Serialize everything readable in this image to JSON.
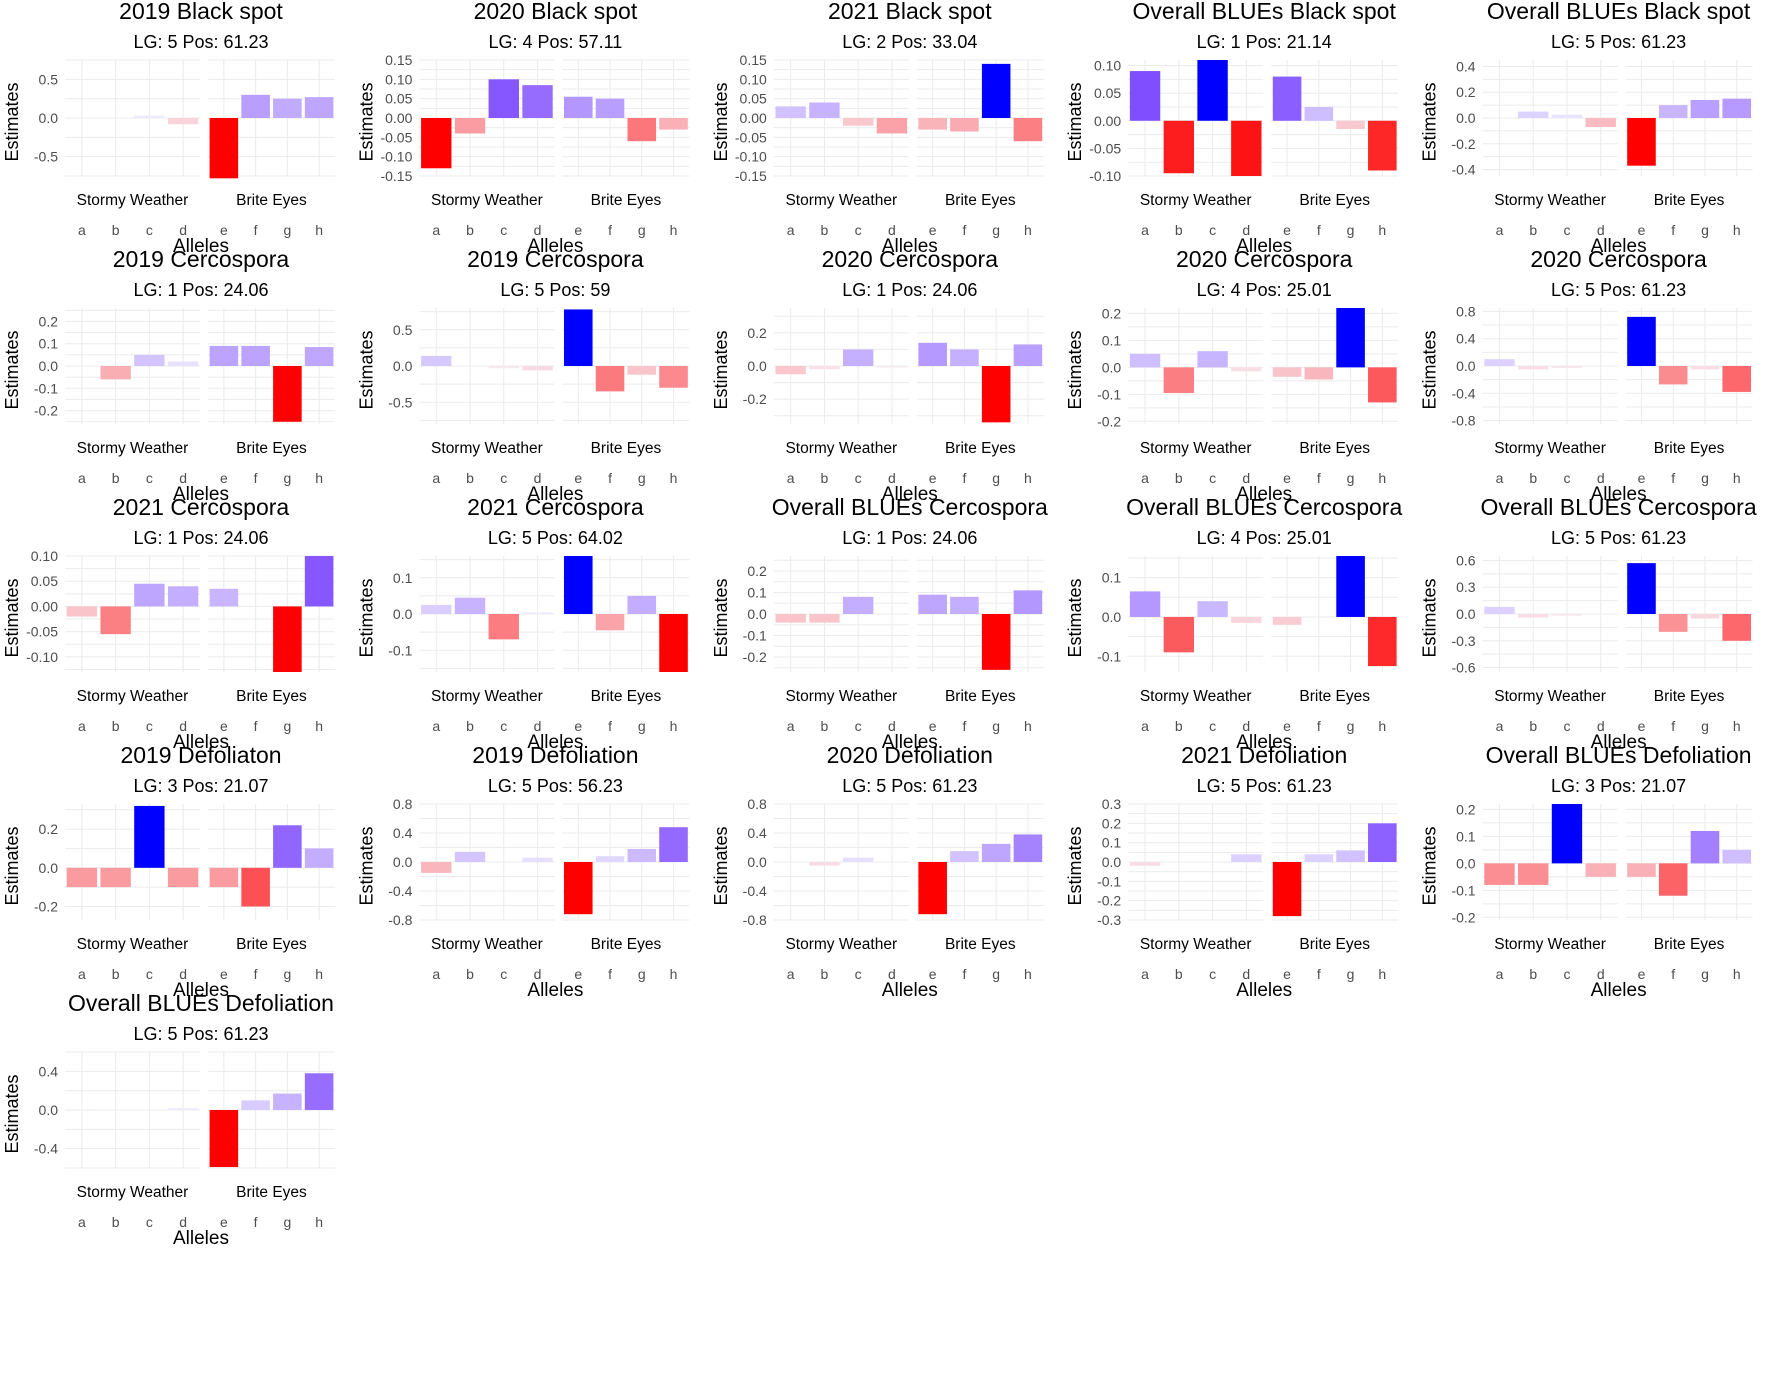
{
  "figure": {
    "x_label": "Alleles",
    "y_label": "Estimates",
    "groups": [
      "Stormy Weather",
      "Brite Eyes"
    ],
    "alleles": [
      [
        "a",
        "b",
        "c",
        "d"
      ],
      [
        "e",
        "f",
        "g",
        "h"
      ]
    ],
    "colors": {
      "negative": "#ff0000",
      "neutral": "#f7f7ff",
      "positive": "#6a2fff",
      "max_positive": "#0000ff"
    }
  },
  "chart_data": [
    {
      "type": "bar",
      "title": "2019 Black spot",
      "subtitle": "LG: 5 Pos: 61.23",
      "ylim": [
        -0.75,
        0.75
      ],
      "yticks": [
        0.5,
        0.0,
        -0.5
      ],
      "ytick_labels": [
        "0.5",
        "0.0",
        "-0.5"
      ],
      "values": [
        0,
        0,
        0.03,
        -0.08,
        -0.78,
        0.3,
        0.25,
        0.27
      ]
    },
    {
      "type": "bar",
      "title": "2020 Black spot",
      "subtitle": "LG: 4 Pos: 57.11",
      "ylim": [
        -0.15,
        0.15
      ],
      "yticks": [
        0.15,
        0.1,
        0.05,
        0.0,
        -0.05,
        -0.1,
        -0.15
      ],
      "ytick_labels": [
        "0.15",
        "0.10",
        "0.05",
        "0.00",
        "-0.05",
        "-0.10",
        "-0.15"
      ],
      "values": [
        -0.13,
        -0.04,
        0.1,
        0.085,
        0.055,
        0.05,
        -0.06,
        -0.03
      ]
    },
    {
      "type": "bar",
      "title": "2021 Black spot",
      "subtitle": "LG: 2 Pos: 33.04",
      "ylim": [
        -0.15,
        0.15
      ],
      "yticks": [
        0.15,
        0.1,
        0.05,
        0.0,
        -0.05,
        -0.1,
        -0.15
      ],
      "ytick_labels": [
        "0.15",
        "0.10",
        "0.05",
        "0.00",
        "-0.05",
        "-0.10",
        "-0.15"
      ],
      "values": [
        0.03,
        0.04,
        -0.02,
        -0.04,
        -0.03,
        -0.035,
        0.14,
        -0.06
      ]
    },
    {
      "type": "bar",
      "title": "Overall BLUEs Black spot",
      "subtitle": "LG: 1 Pos: 21.14",
      "ylim": [
        -0.1,
        0.11
      ],
      "yticks": [
        0.1,
        0.05,
        0.0,
        -0.05,
        -0.1
      ],
      "ytick_labels": [
        "0.10",
        "0.05",
        "0.00",
        "-0.05",
        "-0.10"
      ],
      "values": [
        0.09,
        -0.095,
        0.11,
        -0.1,
        0.08,
        0.025,
        -0.015,
        -0.09
      ]
    },
    {
      "type": "bar",
      "title": "Overall BLUEs Black spot",
      "subtitle": "LG: 5 Pos: 61.23",
      "ylim": [
        -0.45,
        0.45
      ],
      "yticks": [
        0.4,
        0.2,
        0.0,
        -0.2,
        -0.4
      ],
      "ytick_labels": [
        "0.4",
        "0.2",
        "0.0",
        "-0.2",
        "-0.4"
      ],
      "values": [
        0,
        0.05,
        0.025,
        -0.07,
        -0.37,
        0.1,
        0.14,
        0.15
      ]
    },
    {
      "type": "bar",
      "title": "2019 Cercospora",
      "subtitle": "LG: 1 Pos: 24.06",
      "ylim": [
        -0.26,
        0.26
      ],
      "yticks": [
        0.2,
        0.1,
        0.0,
        -0.1,
        -0.2
      ],
      "ytick_labels": [
        "0.2",
        "0.1",
        "0.0",
        "-0.1",
        "-0.2"
      ],
      "values": [
        0,
        -0.06,
        0.05,
        0.02,
        0.09,
        0.09,
        -0.25,
        0.085
      ]
    },
    {
      "type": "bar",
      "title": "2019 Cercospora",
      "subtitle": "LG: 5 Pos: 59",
      "ylim": [
        -0.8,
        0.8
      ],
      "yticks": [
        0.5,
        0.0,
        -0.5
      ],
      "ytick_labels": [
        "0.5",
        "0.0",
        "-0.5"
      ],
      "values": [
        0.14,
        0,
        -0.03,
        -0.06,
        0.78,
        -0.35,
        -0.12,
        -0.3
      ]
    },
    {
      "type": "bar",
      "title": "2020 Cercospora",
      "subtitle": "LG: 1 Pos: 24.06",
      "ylim": [
        -0.35,
        0.35
      ],
      "yticks": [
        0.2,
        0.0,
        -0.2
      ],
      "ytick_labels": [
        "0.2",
        "0.0",
        "-0.2"
      ],
      "values": [
        -0.05,
        -0.02,
        0.1,
        -0.01,
        0.14,
        0.1,
        -0.34,
        0.13
      ]
    },
    {
      "type": "bar",
      "title": "2020 Cercospora",
      "subtitle": "LG: 4 Pos: 25.01",
      "ylim": [
        -0.21,
        0.22
      ],
      "yticks": [
        0.2,
        0.1,
        0.0,
        -0.1,
        -0.2
      ],
      "ytick_labels": [
        "0.2",
        "0.1",
        "0.0",
        "-0.1",
        "-0.2"
      ],
      "values": [
        0.05,
        -0.095,
        0.06,
        -0.015,
        -0.035,
        -0.045,
        0.22,
        -0.13
      ]
    },
    {
      "type": "bar",
      "title": "2020 Cercospora",
      "subtitle": "LG: 5 Pos: 61.23",
      "ylim": [
        -0.85,
        0.85
      ],
      "yticks": [
        0.8,
        0.4,
        0.0,
        -0.4,
        -0.8
      ],
      "ytick_labels": [
        "0.8",
        "0.4",
        "0.0",
        "-0.4",
        "-0.8"
      ],
      "values": [
        0.1,
        -0.05,
        -0.03,
        0,
        0.72,
        -0.27,
        -0.05,
        -0.38
      ]
    },
    {
      "type": "bar",
      "title": "2021 Cercospora",
      "subtitle": "LG: 1 Pos: 24.06",
      "ylim": [
        -0.13,
        0.1
      ],
      "yticks": [
        0.1,
        0.05,
        0.0,
        -0.05,
        -0.1
      ],
      "ytick_labels": [
        "0.10",
        "0.05",
        "0.00",
        "-0.05",
        "-0.10"
      ],
      "values": [
        -0.02,
        -0.055,
        0.045,
        0.04,
        0.035,
        0,
        -0.13,
        0.1
      ]
    },
    {
      "type": "bar",
      "title": "2021 Cercospora",
      "subtitle": "LG: 5 Pos: 64.02",
      "ylim": [
        -0.16,
        0.16
      ],
      "yticks": [
        0.1,
        0.0,
        -0.1
      ],
      "ytick_labels": [
        "0.1",
        "0.0",
        "-0.1"
      ],
      "values": [
        0.025,
        0.045,
        -0.07,
        0.005,
        0.16,
        -0.045,
        0.05,
        -0.16
      ]
    },
    {
      "type": "bar",
      "title": "Overall BLUEs Cercospora",
      "subtitle": "LG: 1 Pos: 24.06",
      "ylim": [
        -0.27,
        0.27
      ],
      "yticks": [
        0.2,
        0.1,
        0.0,
        -0.1,
        -0.2
      ],
      "ytick_labels": [
        "0.2",
        "0.1",
        "0.0",
        "-0.1",
        "-0.2"
      ],
      "values": [
        -0.04,
        -0.04,
        0.08,
        0,
        0.09,
        0.08,
        -0.26,
        0.11
      ]
    },
    {
      "type": "bar",
      "title": "Overall BLUEs Cercospora",
      "subtitle": "LG: 4 Pos: 25.01",
      "ylim": [
        -0.14,
        0.155
      ],
      "yticks": [
        0.1,
        0.0,
        -0.1
      ],
      "ytick_labels": [
        "0.1",
        "0.0",
        "-0.1"
      ],
      "values": [
        0.065,
        -0.09,
        0.04,
        -0.015,
        -0.02,
        0,
        0.155,
        -0.125
      ]
    },
    {
      "type": "bar",
      "title": "Overall BLUEs Cercospora",
      "subtitle": "LG: 5 Pos: 61.23",
      "ylim": [
        -0.65,
        0.65
      ],
      "yticks": [
        0.6,
        0.3,
        0.0,
        -0.3,
        -0.6
      ],
      "ytick_labels": [
        "0.6",
        "0.3",
        "0.0",
        "-0.3",
        "-0.6"
      ],
      "values": [
        0.08,
        -0.04,
        -0.02,
        -0.005,
        0.57,
        -0.2,
        -0.05,
        -0.3
      ]
    },
    {
      "type": "bar",
      "title": "2019 Defoliaton",
      "subtitle": "LG: 3 Pos: 21.07",
      "ylim": [
        -0.27,
        0.33
      ],
      "yticks": [
        0.2,
        0.0,
        -0.2
      ],
      "ytick_labels": [
        "0.2",
        "0.0",
        "-0.2"
      ],
      "values": [
        -0.1,
        -0.1,
        0.32,
        -0.1,
        -0.1,
        -0.2,
        0.22,
        0.1
      ]
    },
    {
      "type": "bar",
      "title": "2019 Defoliation",
      "subtitle": "LG: 5 Pos: 56.23",
      "ylim": [
        -0.8,
        0.8
      ],
      "yticks": [
        0.8,
        0.4,
        0.0,
        -0.4,
        -0.8
      ],
      "ytick_labels": [
        "0.8",
        "0.4",
        "0.0",
        "-0.4",
        "-0.8"
      ],
      "values": [
        -0.15,
        0.14,
        0,
        0.06,
        -0.72,
        0.08,
        0.18,
        0.48
      ]
    },
    {
      "type": "bar",
      "title": "2020 Defoliation",
      "subtitle": "LG: 5 Pos: 61.23",
      "ylim": [
        -0.8,
        0.8
      ],
      "yticks": [
        0.8,
        0.4,
        0.0,
        -0.4,
        -0.8
      ],
      "ytick_labels": [
        "0.8",
        "0.4",
        "0.0",
        "-0.4",
        "-0.8"
      ],
      "values": [
        0,
        -0.05,
        0.06,
        0,
        -0.72,
        0.15,
        0.25,
        0.38
      ]
    },
    {
      "type": "bar",
      "title": "2021 Defoliation",
      "subtitle": "LG: 5 Pos: 61.23",
      "ylim": [
        -0.3,
        0.3
      ],
      "yticks": [
        0.3,
        0.2,
        0.1,
        0.0,
        -0.1,
        -0.2,
        -0.3
      ],
      "ytick_labels": [
        "0.3",
        "0.2",
        "0.1",
        "0.0",
        "-0.1",
        "-0.2",
        "-0.3"
      ],
      "values": [
        -0.02,
        0,
        0,
        0.04,
        -0.28,
        0.04,
        0.06,
        0.2
      ]
    },
    {
      "type": "bar",
      "title": "Overall BLUEs Defoliation",
      "subtitle": "LG: 3 Pos: 21.07",
      "ylim": [
        -0.21,
        0.22
      ],
      "yticks": [
        0.2,
        0.1,
        0.0,
        -0.1,
        -0.2
      ],
      "ytick_labels": [
        "0.2",
        "0.1",
        "0.0",
        "-0.1",
        "-0.2"
      ],
      "values": [
        -0.08,
        -0.08,
        0.22,
        -0.05,
        -0.05,
        -0.12,
        0.12,
        0.05
      ]
    },
    {
      "type": "bar",
      "title": "Overall BLUEs Defoliation",
      "subtitle": "LG: 5 Pos: 61.23",
      "ylim": [
        -0.6,
        0.6
      ],
      "yticks": [
        0.4,
        0.0,
        -0.4
      ],
      "ytick_labels": [
        "0.4",
        "0.0",
        "-0.4"
      ],
      "values": [
        -0.01,
        0,
        0,
        0.02,
        -0.59,
        0.1,
        0.17,
        0.38
      ]
    }
  ]
}
